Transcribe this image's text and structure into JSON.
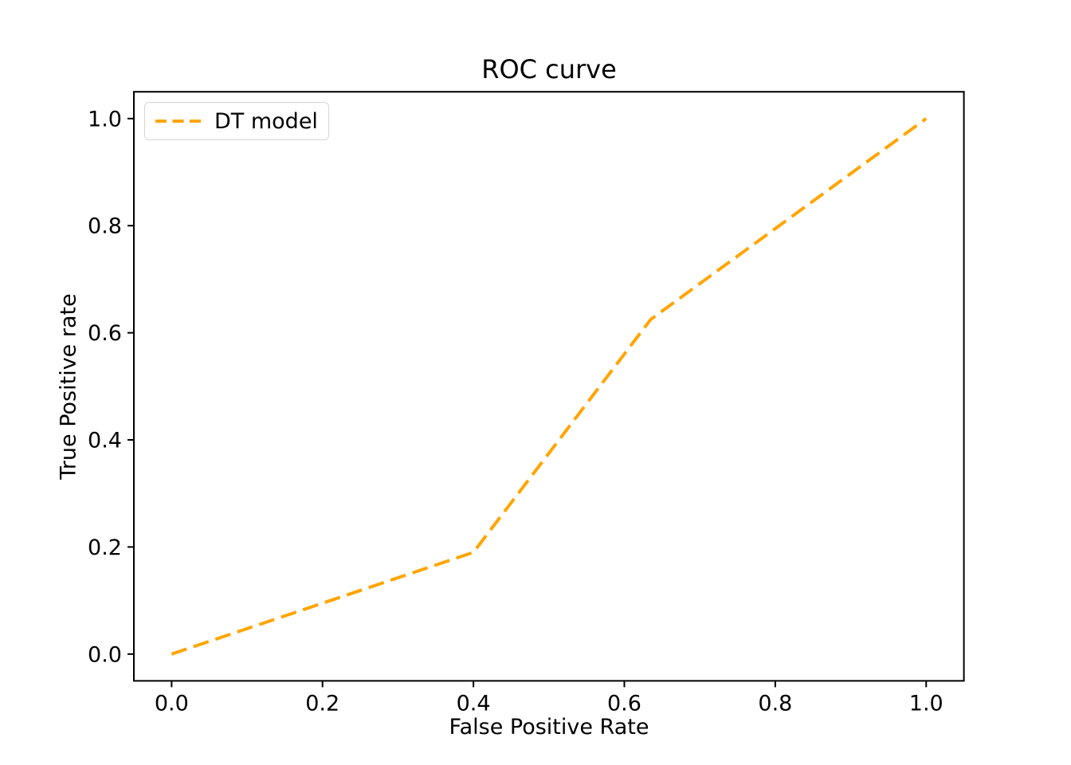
{
  "chart_data": {
    "type": "line",
    "title": "ROC curve",
    "xlabel": "False Positive Rate",
    "ylabel": "True Positive rate",
    "xlim": [
      -0.05,
      1.05
    ],
    "ylim": [
      -0.05,
      1.05
    ],
    "grid": false,
    "legend_position": "upper left",
    "x_tick_labels": [
      "0.0",
      "0.2",
      "0.4",
      "0.6",
      "0.8",
      "1.0"
    ],
    "x_tick_values": [
      0.0,
      0.2,
      0.4,
      0.6,
      0.8,
      1.0
    ],
    "y_tick_labels": [
      "0.0",
      "0.2",
      "0.4",
      "0.6",
      "0.8",
      "1.0"
    ],
    "y_tick_values": [
      0.0,
      0.2,
      0.4,
      0.6,
      0.8,
      1.0
    ],
    "series": [
      {
        "name": "DT model",
        "color": "#FFA500",
        "line_style": "dashed",
        "x": [
          0.0,
          0.4,
          0.635,
          1.0
        ],
        "y": [
          0.0,
          0.19,
          0.625,
          1.0
        ]
      }
    ]
  }
}
